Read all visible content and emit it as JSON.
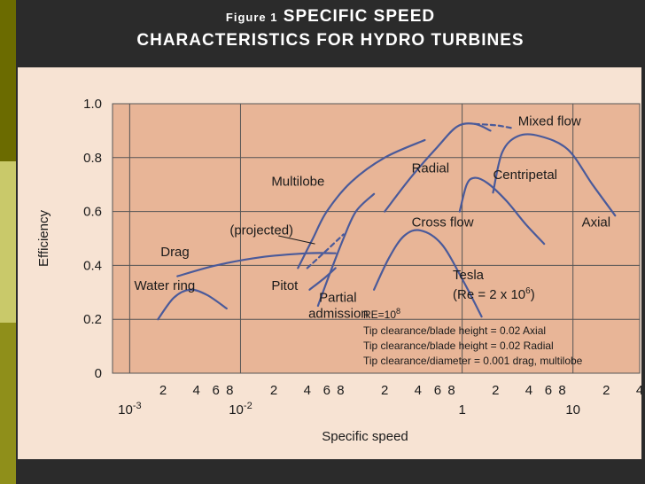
{
  "slide": {
    "figure_label": "Figure 1",
    "title_line1": "SPECIFIC SPEED",
    "title_line2": "CHARACTERISTICS FOR HYDRO TURBINES"
  },
  "colors": {
    "curve": "#4a5a9a",
    "plot_bg": "#e8b597",
    "frame": "#2b2b2b",
    "stripe_dark": "#6b6b00",
    "stripe_light": "#c9c96a"
  },
  "chart_data": {
    "type": "line",
    "xscale": "log",
    "xlabel": "Specific speed",
    "ylabel": "Efficiency",
    "xlim": [
      0.0007,
      40
    ],
    "ylim": [
      0,
      1.0
    ],
    "yticks": [
      "0",
      "0.2",
      "0.4",
      "0.6",
      "0.8",
      "1.0"
    ],
    "ytick_values": [
      0,
      0.2,
      0.4,
      0.6,
      0.8,
      1.0
    ],
    "xticks_minor": [
      {
        "v": 0.002,
        "t": "2"
      },
      {
        "v": 0.004,
        "t": "4"
      },
      {
        "v": 0.006,
        "t": "6"
      },
      {
        "v": 0.008,
        "t": "8"
      },
      {
        "v": 0.02,
        "t": "2"
      },
      {
        "v": 0.04,
        "t": "4"
      },
      {
        "v": 0.06,
        "t": "6"
      },
      {
        "v": 0.08,
        "t": "8"
      },
      {
        "v": 0.2,
        "t": "2"
      },
      {
        "v": 0.4,
        "t": "4"
      },
      {
        "v": 0.6,
        "t": "6"
      },
      {
        "v": 0.8,
        "t": "8"
      },
      {
        "v": 2,
        "t": "2"
      },
      {
        "v": 4,
        "t": "4"
      },
      {
        "v": 6,
        "t": "6"
      },
      {
        "v": 8,
        "t": "8"
      },
      {
        "v": 20,
        "t": "2"
      },
      {
        "v": 40,
        "t": "4"
      }
    ],
    "xticks_major": [
      {
        "v": 0.001,
        "base": "10",
        "exp": "-3"
      },
      {
        "v": 0.01,
        "base": "10",
        "exp": "-2"
      },
      {
        "v": 1,
        "base": "1",
        "exp": ""
      },
      {
        "v": 10,
        "base": "10",
        "exp": ""
      }
    ],
    "grid": true,
    "series": [
      {
        "name": "Water ring",
        "label_at": [
          0.0011,
          0.31
        ],
        "points": [
          [
            0.0018,
            0.2
          ],
          [
            0.0025,
            0.28
          ],
          [
            0.0035,
            0.31
          ],
          [
            0.005,
            0.29
          ],
          [
            0.0075,
            0.24
          ]
        ]
      },
      {
        "name": "Drag",
        "label_at": [
          0.0019,
          0.435
        ],
        "points": [
          [
            0.0027,
            0.36
          ],
          [
            0.006,
            0.4
          ],
          [
            0.015,
            0.43
          ],
          [
            0.04,
            0.445
          ],
          [
            0.072,
            0.445
          ]
        ]
      },
      {
        "name": "Multilobe",
        "label_at": [
          0.019,
          0.695
        ],
        "points": [
          [
            0.033,
            0.39
          ],
          [
            0.045,
            0.5
          ],
          [
            0.06,
            0.6
          ],
          [
            0.1,
            0.71
          ],
          [
            0.2,
            0.8
          ],
          [
            0.46,
            0.865
          ]
        ]
      },
      {
        "name": "Partial admission",
        "label_at": [
          0.041,
          0.265
        ],
        "points": [
          [
            0.05,
            0.25
          ],
          [
            0.064,
            0.37
          ],
          [
            0.085,
            0.5
          ],
          [
            0.11,
            0.6
          ],
          [
            0.16,
            0.665
          ]
        ]
      },
      {
        "name": "Pitot",
        "label_at": [
          0.019,
          0.31
        ],
        "points": [
          [
            0.042,
            0.31
          ],
          [
            0.058,
            0.355
          ],
          [
            0.072,
            0.39
          ]
        ]
      },
      {
        "name": "(projected)",
        "dashed": true,
        "label_at": [
          0.008,
          0.515
        ],
        "points": [
          [
            0.04,
            0.39
          ],
          [
            0.056,
            0.445
          ],
          [
            0.085,
            0.515
          ]
        ]
      },
      {
        "name": "Radial",
        "label_at": [
          0.35,
          0.745
        ],
        "points": [
          [
            0.2,
            0.6
          ],
          [
            0.35,
            0.73
          ],
          [
            0.6,
            0.84
          ],
          [
            0.9,
            0.915
          ],
          [
            1.3,
            0.925
          ],
          [
            1.8,
            0.9
          ]
        ]
      },
      {
        "name": "Cross flow",
        "label_at": [
          0.35,
          0.545
        ],
        "points": [
          [
            0.16,
            0.31
          ],
          [
            0.22,
            0.43
          ],
          [
            0.3,
            0.51
          ],
          [
            0.42,
            0.53
          ],
          [
            0.65,
            0.48
          ],
          [
            1.0,
            0.35
          ],
          [
            1.5,
            0.21
          ]
        ]
      },
      {
        "name": "Centripetal",
        "label_at": [
          1.9,
          0.72
        ],
        "points": [
          [
            0.95,
            0.6
          ],
          [
            1.1,
            0.7
          ],
          [
            1.3,
            0.725
          ],
          [
            1.7,
            0.705
          ],
          [
            2.5,
            0.64
          ],
          [
            3.8,
            0.55
          ],
          [
            5.5,
            0.48
          ]
        ]
      },
      {
        "name": "Mixed flow",
        "dashed": true,
        "label_at": [
          3.2,
          0.92
        ],
        "points": [
          [
            1.3,
            0.925
          ],
          [
            2.0,
            0.92
          ],
          [
            2.8,
            0.91
          ]
        ]
      },
      {
        "name": "Axial",
        "label_at": [
          12,
          0.545
        ],
        "points": [
          [
            1.9,
            0.67
          ],
          [
            2.3,
            0.82
          ],
          [
            3.2,
            0.88
          ],
          [
            5,
            0.88
          ],
          [
            9,
            0.83
          ],
          [
            15,
            0.7
          ],
          [
            24,
            0.585
          ]
        ]
      }
    ],
    "annotations": {
      "tesla_label": "Tesla",
      "tesla_re_prefix": "(Re = 2 x 10",
      "tesla_re_exp": "6",
      "tesla_re_suffix": ")",
      "re_line_prefix": "RE=10",
      "re_line_exp": "8",
      "note1": "Tip clearance/blade height = 0.02 Axial",
      "note2": "Tip clearance/blade height = 0.02 Radial",
      "note3": "Tip clearance/diameter = 0.001 drag, multilobe"
    }
  }
}
